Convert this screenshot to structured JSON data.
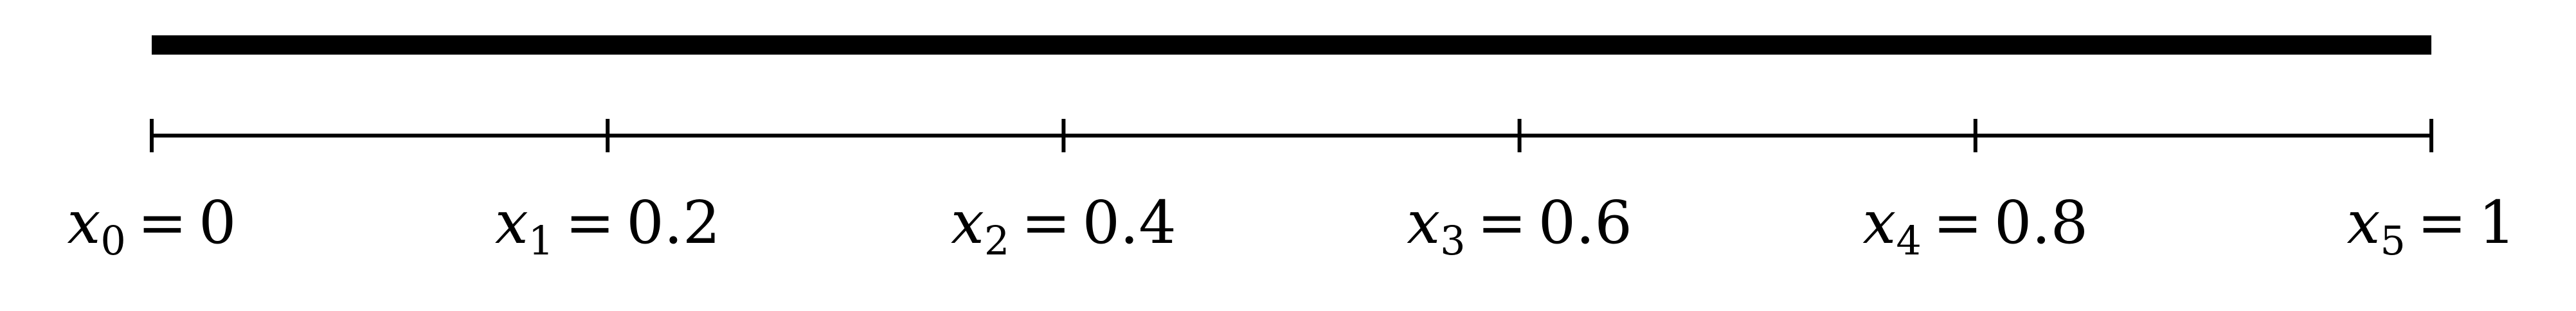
{
  "colors": {
    "ink": "#000000",
    "background": "#ffffff"
  },
  "diagram": {
    "domain": [
      0,
      1
    ],
    "thick_bar": {
      "from": 0,
      "to": 1
    },
    "nodes": [
      {
        "var": "x",
        "sub": "0",
        "eq": "=",
        "value": "0",
        "x": 0
      },
      {
        "var": "x",
        "sub": "1",
        "eq": "=",
        "value": "0.2",
        "x": 0.2
      },
      {
        "var": "x",
        "sub": "2",
        "eq": "=",
        "value": "0.4",
        "x": 0.4
      },
      {
        "var": "x",
        "sub": "3",
        "eq": "=",
        "value": "0.6",
        "x": 0.6
      },
      {
        "var": "x",
        "sub": "4",
        "eq": "=",
        "value": "0.8",
        "x": 0.8
      },
      {
        "var": "x",
        "sub": "5",
        "eq": "=",
        "value": "1",
        "x": 1
      }
    ]
  }
}
